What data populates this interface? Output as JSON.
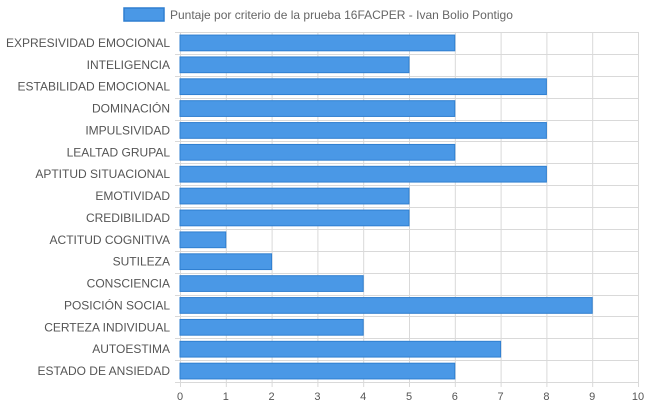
{
  "chart_data": {
    "type": "bar",
    "orientation": "horizontal",
    "legend_label": "Puntaje por criterio de la prueba 16FACPER - Ivan Bolio Pontigo",
    "legend_position": "top-center",
    "categories": [
      "EXPRESIVIDAD EMOCIONAL",
      "INTELIGENCIA",
      "ESTABILIDAD EMOCIONAL",
      "DOMINACIÓN",
      "IMPULSIVIDAD",
      "LEALTAD GRUPAL",
      "APTITUD SITUACIONAL",
      "EMOTIVIDAD",
      "CREDIBILIDAD",
      "ACTITUD COGNITIVA",
      "SUTILEZA",
      "CONSCIENCIA",
      "POSICIÓN SOCIAL",
      "CERTEZA INDIVIDUAL",
      "AUTOESTIMA",
      "ESTADO DE ANSIEDAD"
    ],
    "values": [
      6,
      5,
      8,
      6,
      8,
      6,
      8,
      5,
      5,
      1,
      2,
      4,
      9,
      4,
      7,
      6
    ],
    "xlim": [
      0,
      10
    ],
    "x_ticks": [
      "0",
      "1",
      "2",
      "3",
      "4",
      "5",
      "6",
      "7",
      "8",
      "9",
      "10"
    ],
    "grid": true,
    "colors": {
      "bar_fill": "#4a98e6",
      "bar_stroke": "#2f7fd0",
      "grid": "#d9d9d9",
      "axis_text": "#555555"
    }
  }
}
